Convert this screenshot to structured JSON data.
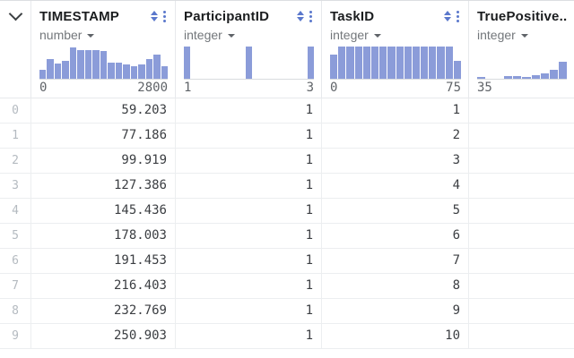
{
  "columns": [
    {
      "label": "TIMESTAMP",
      "type": "number",
      "range_min": "0",
      "range_max": "2800",
      "controls_visible": true,
      "hist": {
        "style": "flex",
        "bars": [
          0.28,
          0.62,
          0.48,
          0.55,
          0.97,
          0.9,
          0.88,
          0.88,
          0.86,
          0.5,
          0.5,
          0.44,
          0.38,
          0.44,
          0.62,
          0.74,
          0.4
        ]
      }
    },
    {
      "label": "ParticipantID",
      "type": "integer",
      "range_min": "1",
      "range_max": "3",
      "controls_visible": true,
      "hist": {
        "style": "spaced",
        "bars": [
          1,
          1,
          1
        ]
      }
    },
    {
      "label": "TaskID",
      "type": "integer",
      "range_min": "0",
      "range_max": "75",
      "controls_visible": true,
      "hist": {
        "style": "flex",
        "bars": [
          0.75,
          1,
          1,
          1,
          1,
          1,
          1,
          1,
          1,
          1,
          1,
          1,
          1,
          1,
          1,
          0.55
        ]
      }
    },
    {
      "label": "TruePositive...",
      "type": "integer",
      "range_min": "35",
      "range_max": "",
      "controls_visible": false,
      "hist": {
        "style": "flex",
        "bars": [
          0.06,
          0,
          0,
          0.07,
          0.07,
          0.06,
          0.12,
          0.17,
          0.28,
          0.52
        ]
      }
    }
  ],
  "rows": [
    {
      "index": "0",
      "cells": [
        "59.203",
        "1",
        "1",
        ""
      ]
    },
    {
      "index": "1",
      "cells": [
        "77.186",
        "1",
        "2",
        ""
      ]
    },
    {
      "index": "2",
      "cells": [
        "99.919",
        "1",
        "3",
        ""
      ]
    },
    {
      "index": "3",
      "cells": [
        "127.386",
        "1",
        "4",
        ""
      ]
    },
    {
      "index": "4",
      "cells": [
        "145.436",
        "1",
        "5",
        ""
      ]
    },
    {
      "index": "5",
      "cells": [
        "178.003",
        "1",
        "6",
        ""
      ]
    },
    {
      "index": "6",
      "cells": [
        "191.453",
        "1",
        "7",
        ""
      ]
    },
    {
      "index": "7",
      "cells": [
        "216.403",
        "1",
        "8",
        ""
      ]
    },
    {
      "index": "8",
      "cells": [
        "232.769",
        "1",
        "9",
        ""
      ]
    },
    {
      "index": "9",
      "cells": [
        "250.903",
        "1",
        "10",
        ""
      ]
    }
  ],
  "colors": {
    "histogram_bar": "#8b9cd9",
    "accent_blue": "#5b78cc"
  }
}
